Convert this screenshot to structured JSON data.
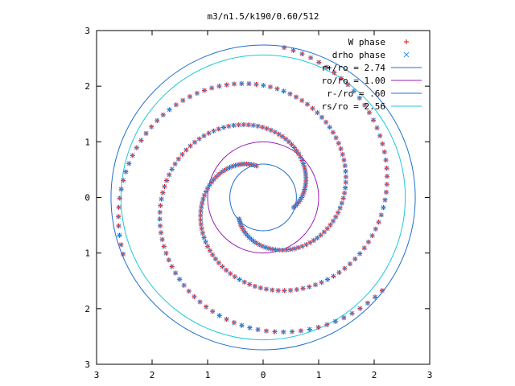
{
  "chart_data": {
    "type": "scatter",
    "title": "m3/n1.5/k190/0.60/512",
    "xlabel": "",
    "ylabel": "",
    "xlim": [
      -3,
      3
    ],
    "ylim": [
      -3,
      3
    ],
    "grid": false,
    "legend_position": "top-right",
    "x_tick_values": [
      -3,
      -2,
      -1,
      0,
      1,
      2,
      3
    ],
    "x_tick_labels": [
      "3",
      "2",
      "1",
      "0",
      "1",
      "2",
      "3"
    ],
    "y_tick_values": [
      3,
      2,
      1,
      0,
      -1,
      -2,
      -3
    ],
    "y_tick_labels": [
      "3",
      "2",
      "1",
      "0",
      "1",
      "2",
      "3"
    ],
    "series": [
      {
        "name": "W phase",
        "marker": "+",
        "color": "#ff0000",
        "spiral": {
          "arms": 3,
          "r_start": 0.58,
          "r_end": 2.72,
          "theta_start_deg": [
            -18,
            102,
            222
          ],
          "wind_deg": 340,
          "points_per_arm": 95
        }
      },
      {
        "name": "drho phase",
        "marker": "x",
        "color": "#3a8fe0",
        "spiral": {
          "arms": 3,
          "r_start": 0.58,
          "r_end": 2.72,
          "theta_start_deg": [
            -18,
            102,
            222
          ],
          "wind_deg": 340,
          "points_per_arm": 95
        }
      }
    ],
    "circles": [
      {
        "name": "r+/ro = 2.74",
        "radius": 2.74,
        "color": "#1f6fd0"
      },
      {
        "name": "ro/ro = 1.00",
        "radius": 1.0,
        "color": "#9b1fb8"
      },
      {
        "name": "r-/ro = .60",
        "radius": 0.6,
        "color": "#1f6fd0"
      },
      {
        "name": "rs/ro = 2.56",
        "radius": 2.56,
        "color": "#1ec8d8"
      }
    ]
  }
}
